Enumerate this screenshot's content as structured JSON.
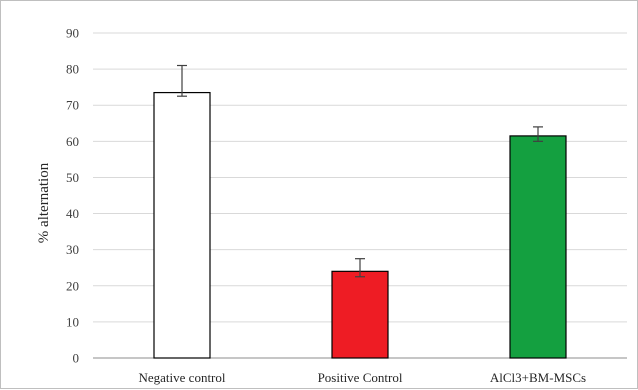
{
  "chart_data": {
    "type": "bar",
    "categories": [
      "Negative control",
      "Positive Control",
      "AlCl3+BM-MSCs"
    ],
    "values": [
      73.5,
      24,
      61.5
    ],
    "error_upper": [
      81,
      27.5,
      64
    ],
    "error_lower": [
      72.5,
      22.5,
      60
    ],
    "colors": [
      "#ffffff",
      "#ee1c24",
      "#14a040"
    ],
    "ylabel": "% alternation",
    "xlabel": "",
    "ylim": [
      0,
      90
    ],
    "yticks": [
      0,
      10,
      20,
      30,
      40,
      50,
      60,
      70,
      80,
      90
    ],
    "grid": true,
    "legend": "none"
  }
}
